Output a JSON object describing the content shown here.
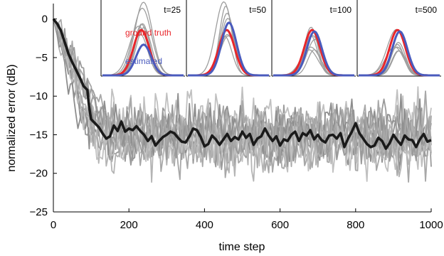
{
  "chart_data": {
    "type": "line",
    "xlabel": "time step",
    "ylabel": "normalized error (dB)",
    "xlim": [
      0,
      1000
    ],
    "ylim": [
      -25,
      2
    ],
    "xticks": [
      0,
      200,
      400,
      600,
      800,
      1000
    ],
    "yticks": [
      0,
      -5,
      -10,
      -15,
      -20,
      -25
    ],
    "xtick_labels": [
      "0",
      "200",
      "400",
      "600",
      "800",
      "1000"
    ],
    "ytick_labels": [
      "0",
      "−5",
      "−10",
      "−15",
      "−20",
      "−25"
    ],
    "mean_series": {
      "color": "#1a1a1a",
      "points": [
        [
          0,
          0
        ],
        [
          10,
          -0.6
        ],
        [
          20,
          -1.5
        ],
        [
          30,
          -3
        ],
        [
          40,
          -4.5
        ],
        [
          50,
          -5.6
        ],
        [
          60,
          -6.6
        ],
        [
          70,
          -7.6
        ],
        [
          80,
          -8.7
        ],
        [
          90,
          -9.2
        ],
        [
          95,
          -11.5
        ],
        [
          100,
          -13
        ],
        [
          110,
          -13.5
        ],
        [
          120,
          -14
        ],
        [
          130,
          -14.8
        ],
        [
          140,
          -15.5
        ],
        [
          150,
          -15.2
        ],
        [
          160,
          -13.8
        ],
        [
          170,
          -14.5
        ],
        [
          180,
          -13.3
        ],
        [
          190,
          -14.6
        ],
        [
          200,
          -14.2
        ],
        [
          210,
          -14.4
        ],
        [
          220,
          -13.9
        ],
        [
          230,
          -14.5
        ],
        [
          240,
          -15
        ],
        [
          250,
          -15.8
        ],
        [
          260,
          -15.2
        ],
        [
          270,
          -16.4
        ],
        [
          280,
          -15.8
        ],
        [
          290,
          -15.3
        ],
        [
          300,
          -15
        ],
        [
          310,
          -14.6
        ],
        [
          320,
          -14.8
        ],
        [
          330,
          -15.4
        ],
        [
          340,
          -15.9
        ],
        [
          350,
          -16
        ],
        [
          360,
          -15.2
        ],
        [
          370,
          -14.2
        ],
        [
          380,
          -14.4
        ],
        [
          390,
          -15.3
        ],
        [
          400,
          -16.5
        ],
        [
          410,
          -16.2
        ],
        [
          420,
          -15.1
        ],
        [
          430,
          -15.6
        ],
        [
          440,
          -16.3
        ],
        [
          450,
          -15.6
        ],
        [
          460,
          -14.9
        ],
        [
          470,
          -15.8
        ],
        [
          480,
          -15.3
        ],
        [
          490,
          -15.6
        ],
        [
          500,
          -14.6
        ],
        [
          510,
          -15.4
        ],
        [
          520,
          -14.9
        ],
        [
          530,
          -16.3
        ],
        [
          540,
          -15.5
        ],
        [
          550,
          -15.2
        ],
        [
          560,
          -14.2
        ],
        [
          570,
          -15.1
        ],
        [
          580,
          -15.8
        ],
        [
          590,
          -15.2
        ],
        [
          600,
          -16.4
        ],
        [
          610,
          -15.6
        ],
        [
          620,
          -15.8
        ],
        [
          630,
          -15
        ],
        [
          640,
          -14.6
        ],
        [
          650,
          -15.8
        ],
        [
          660,
          -14.8
        ],
        [
          670,
          -15.1
        ],
        [
          680,
          -14.4
        ],
        [
          690,
          -15.6
        ],
        [
          700,
          -15
        ],
        [
          710,
          -15.7
        ],
        [
          720,
          -16
        ],
        [
          730,
          -15.1
        ],
        [
          740,
          -15
        ],
        [
          750,
          -15.5
        ],
        [
          760,
          -14.8
        ],
        [
          770,
          -16.6
        ],
        [
          780,
          -15.5
        ],
        [
          790,
          -14.6
        ],
        [
          800,
          -13.5
        ],
        [
          810,
          -14.8
        ],
        [
          820,
          -15.5
        ],
        [
          830,
          -16.2
        ],
        [
          840,
          -16.6
        ],
        [
          850,
          -16.4
        ],
        [
          860,
          -15.4
        ],
        [
          870,
          -15.8
        ],
        [
          880,
          -16.8
        ],
        [
          890,
          -16.1
        ],
        [
          900,
          -15
        ],
        [
          910,
          -15.7
        ],
        [
          920,
          -16.3
        ],
        [
          930,
          -15.1
        ],
        [
          940,
          -15.6
        ],
        [
          950,
          -15.7
        ],
        [
          960,
          -16.6
        ],
        [
          970,
          -15.6
        ],
        [
          980,
          -14.9
        ],
        [
          990,
          -15.9
        ],
        [
          1000,
          -15.7
        ]
      ]
    },
    "trial_series": {
      "count": 12,
      "colors": [
        "#9a9a9a",
        "#a8a8a8",
        "#b4b4b4",
        "#8e8e8e",
        "#c0c0c0"
      ],
      "level_db": -15,
      "spread_db": 5
    },
    "insets": [
      {
        "title": "t=25",
        "legend": [
          {
            "label": "ground truth",
            "color": "#e8262b"
          },
          {
            "label": "estimated",
            "color": "#4a5bbd"
          }
        ],
        "truth_peak": 0.62,
        "est_peak": 0.42,
        "gray_peak": 1.0
      },
      {
        "title": "t=50",
        "legend": [],
        "truth_peak": 0.62,
        "est_peak": 0.72,
        "gray_peak": 1.05
      },
      {
        "title": "t=100",
        "legend": [],
        "truth_peak": 0.62,
        "est_peak": 0.6,
        "gray_peak": 0.7
      },
      {
        "title": "t=500",
        "legend": [],
        "truth_peak": 0.62,
        "est_peak": 0.6,
        "gray_peak": 0.68
      }
    ]
  }
}
